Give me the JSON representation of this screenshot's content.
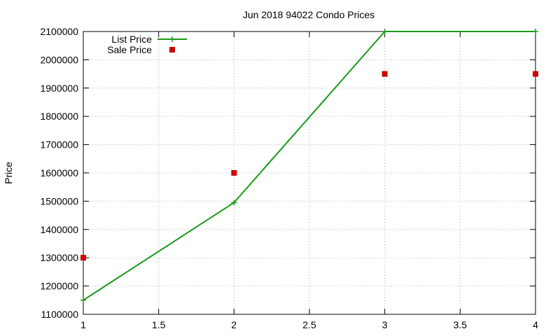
{
  "chart_data": {
    "type": "line",
    "title": "Jun 2018 94022 Condo Prices",
    "xlabel": "",
    "ylabel": "Price",
    "xlim": [
      1,
      4
    ],
    "ylim": [
      1100000,
      2100000
    ],
    "xticks": [
      1,
      1.5,
      2,
      2.5,
      3,
      3.5,
      4
    ],
    "xtick_labels": [
      "1",
      "1.5",
      "2",
      "2.5",
      "3",
      "3.5",
      "4"
    ],
    "yticks": [
      1100000,
      1200000,
      1300000,
      1400000,
      1500000,
      1600000,
      1700000,
      1800000,
      1900000,
      2000000,
      2100000
    ],
    "ytick_labels": [
      "1100000",
      "1200000",
      "1300000",
      "1400000",
      "1500000",
      "1600000",
      "1700000",
      "1800000",
      "1900000",
      "2000000",
      "2100000"
    ],
    "grid": true,
    "legend_position": "top-left",
    "series": [
      {
        "name": "List Price",
        "style": "line-with-plus-markers",
        "color": "#1a9a1a",
        "x": [
          1,
          2,
          3,
          4
        ],
        "y": [
          1150000,
          1495000,
          2100000,
          2100000
        ]
      },
      {
        "name": "Sale Price",
        "style": "square-markers",
        "color": "#cc0000",
        "x": [
          1,
          2,
          3,
          4
        ],
        "y": [
          1300000,
          1600000,
          1950000,
          1950000
        ]
      }
    ]
  }
}
